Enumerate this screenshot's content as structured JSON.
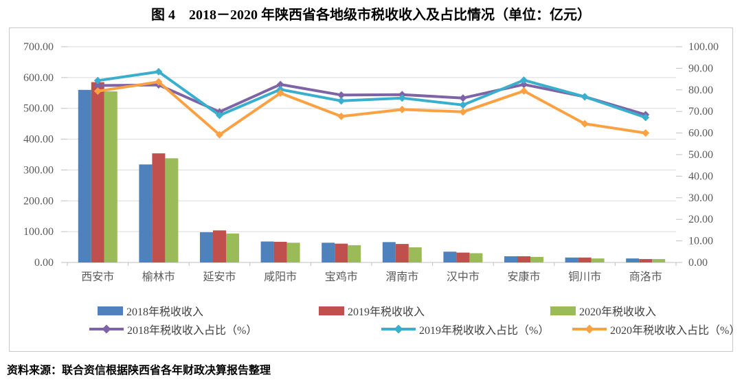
{
  "chart_data": {
    "type": "bar+line",
    "title": "图 4　2018－2020 年陕西省各地级市税收收入及占比情况（单位：亿元）",
    "categories": [
      "西安市",
      "榆林市",
      "延安市",
      "咸阳市",
      "宝鸡市",
      "渭南市",
      "汉中市",
      "安康市",
      "铜川市",
      "商洛市"
    ],
    "bar_series": [
      {
        "name": "2018年税收收入",
        "color": "#4F81BD",
        "values": [
          560,
          318,
          98,
          68,
          64,
          66,
          35,
          20,
          16,
          13
        ]
      },
      {
        "name": "2019年税收收入",
        "color": "#C0504D",
        "values": [
          585,
          354,
          104,
          67,
          61,
          60,
          32,
          20,
          16,
          11
        ]
      },
      {
        "name": "2020年税收收入",
        "color": "#9BBB59",
        "values": [
          555,
          338,
          94,
          64,
          56,
          49,
          30,
          18,
          13,
          11
        ]
      }
    ],
    "line_series": [
      {
        "name": "2018年税收收入占比（%）",
        "color": "#7E64A5",
        "values": [
          82.0,
          82.3,
          69.8,
          82.5,
          77.6,
          77.8,
          76.2,
          82.5,
          76.8,
          68.5
        ]
      },
      {
        "name": "2019年税收收入占比（%）",
        "color": "#3AAECD",
        "values": [
          84.3,
          88.4,
          68.2,
          80.2,
          74.9,
          76.2,
          73.0,
          84.5,
          76.8,
          67.2
        ]
      },
      {
        "name": "2020年税收收入占比（%）",
        "color": "#FAA143",
        "values": [
          79.4,
          83.7,
          59.2,
          78.5,
          67.7,
          70.9,
          69.8,
          79.5,
          64.3,
          60.0
        ]
      }
    ],
    "left_axis": {
      "min": 0,
      "max": 700,
      "step": 100,
      "decimals": 2
    },
    "right_axis": {
      "min": 0,
      "max": 100,
      "step": 10,
      "decimals": 2
    },
    "grid": true,
    "legend_position": "bottom",
    "colors": {
      "grid": "#D9D9D9",
      "axis_line": "#BFBFBF",
      "axis_text": "#595959"
    }
  },
  "source_note": "资料来源：联合资信根据陕西省各年财政决算报告整理"
}
